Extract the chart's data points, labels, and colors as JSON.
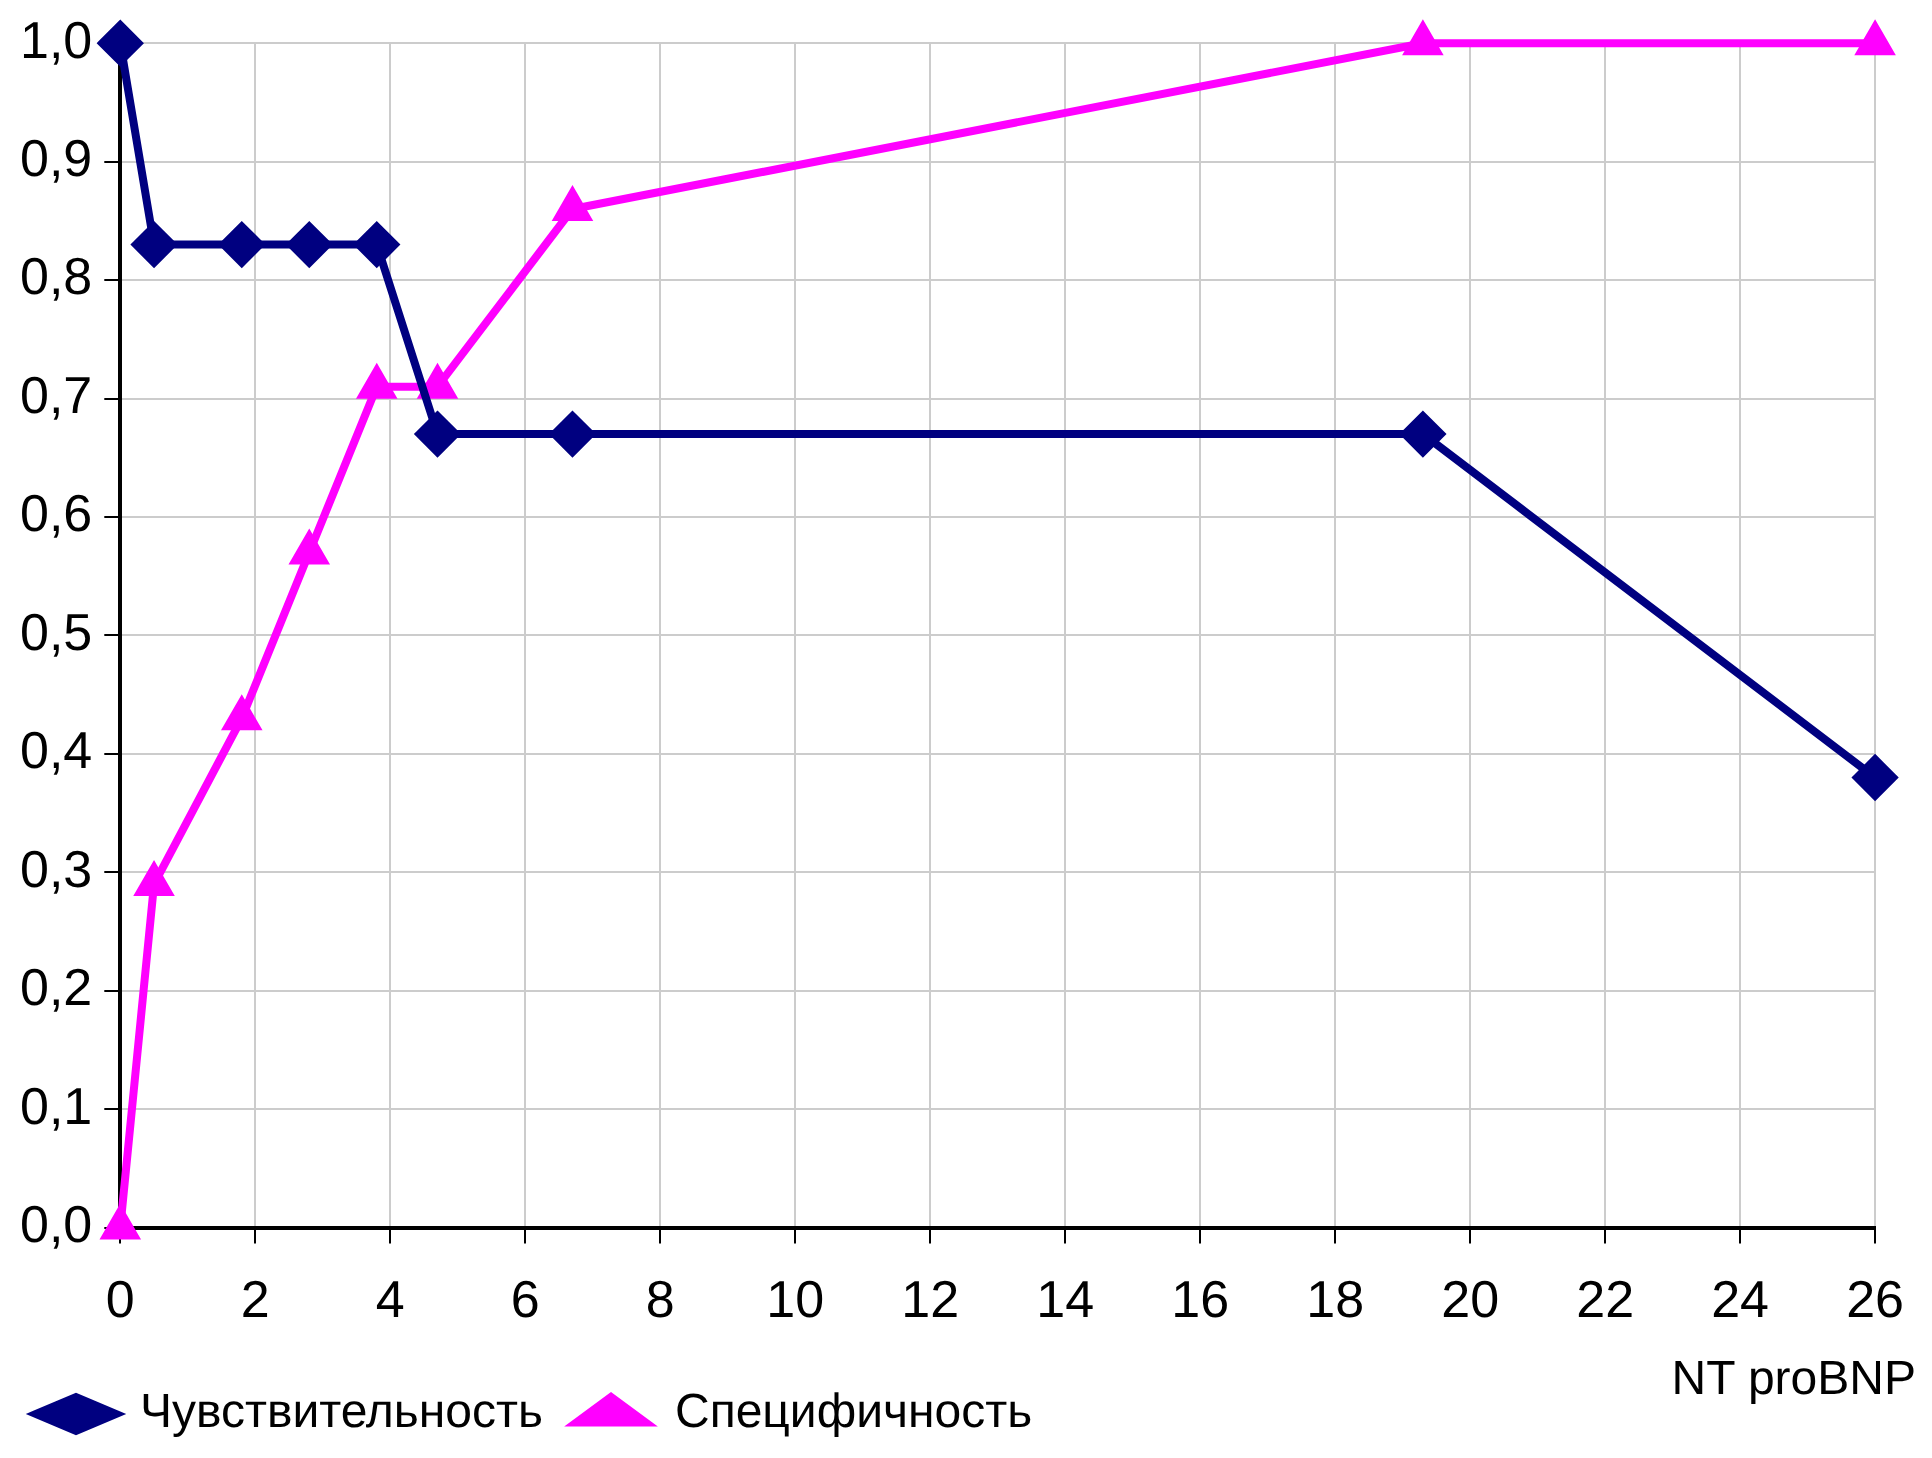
{
  "chart_data": {
    "type": "line",
    "xlabel": "NT proBNP",
    "x": [
      0,
      0.5,
      1.8,
      2.8,
      3.8,
      4.7,
      6.7,
      19.3,
      26
    ],
    "series": [
      {
        "name": "Чувствительность",
        "color": "#000080",
        "marker": "diamond",
        "values": [
          1,
          0.83,
          0.83,
          0.83,
          0.83,
          0.67,
          0.67,
          0.67,
          0.38
        ]
      },
      {
        "name": "Специфичность",
        "color": "#ff00ff",
        "marker": "triangle",
        "values": [
          0,
          0.29,
          0.43,
          0.57,
          0.71,
          0.71,
          0.86,
          1,
          1
        ]
      }
    ],
    "xlim": [
      0,
      26
    ],
    "xticks": [
      0,
      2,
      4,
      6,
      8,
      10,
      12,
      14,
      16,
      18,
      20,
      22,
      24,
      26
    ],
    "ylim": [
      0,
      1
    ],
    "yticks": [
      {
        "value": 0,
        "label": "0,0"
      },
      {
        "value": 0.1,
        "label": "0,1"
      },
      {
        "value": 0.2,
        "label": "0,2"
      },
      {
        "value": 0.3,
        "label": "0,3"
      },
      {
        "value": 0.4,
        "label": "0,4"
      },
      {
        "value": 0.5,
        "label": "0,5"
      },
      {
        "value": 0.6,
        "label": "0,6"
      },
      {
        "value": 0.7,
        "label": "0,7"
      },
      {
        "value": 0.8,
        "label": "0,8"
      },
      {
        "value": 0.9,
        "label": "0,9"
      },
      {
        "value": 1,
        "label": "1,0"
      }
    ],
    "grid": true,
    "legend": "bottom",
    "line_style": "solid"
  }
}
